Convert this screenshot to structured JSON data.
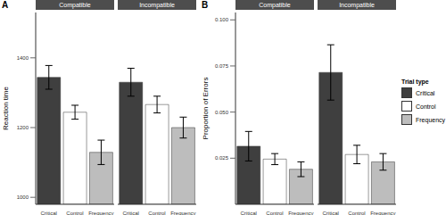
{
  "chart_data": [
    {
      "type": "bar",
      "title": "A",
      "y_label": "Reaction time",
      "ylim": [
        980,
        1530
      ],
      "yticks": [
        1000,
        1200,
        1400
      ],
      "categories": [
        "Critical",
        "Control",
        "Frequency"
      ],
      "colors": [
        "#3f3f3f",
        "#ffffff",
        "#bdbdbd"
      ],
      "facets": [
        {
          "title": "Compatible",
          "values": [
            1344,
            1244,
            1129
          ],
          "errors": [
            34,
            20,
            35
          ]
        },
        {
          "title": "Incompatible",
          "values": [
            1330,
            1266,
            1200
          ],
          "errors": [
            40,
            24,
            30
          ]
        }
      ]
    },
    {
      "type": "bar",
      "title": "B",
      "y_label": "Proportion of Errors",
      "ylim": [
        0,
        0.104
      ],
      "yticks": [
        0.025,
        {
          "value": 0.05,
          "label": "0.050"
        },
        0.075,
        {
          "value": 0.1,
          "label": "0.100"
        }
      ],
      "categories": [
        "Critical",
        "Control",
        "Frequency"
      ],
      "colors": [
        "#3f3f3f",
        "#ffffff",
        "#bdbdbd"
      ],
      "legend": "right",
      "legend_title": "Trial type",
      "facets": [
        {
          "title": "Compatible",
          "values": [
            0.0315,
            0.0245,
            0.019
          ],
          "errors": [
            0.008,
            0.003,
            0.004
          ]
        },
        {
          "title": "Incompatible",
          "values": [
            0.0715,
            0.027,
            0.023
          ],
          "errors": [
            0.015,
            0.005,
            0.0045
          ]
        }
      ]
    }
  ]
}
